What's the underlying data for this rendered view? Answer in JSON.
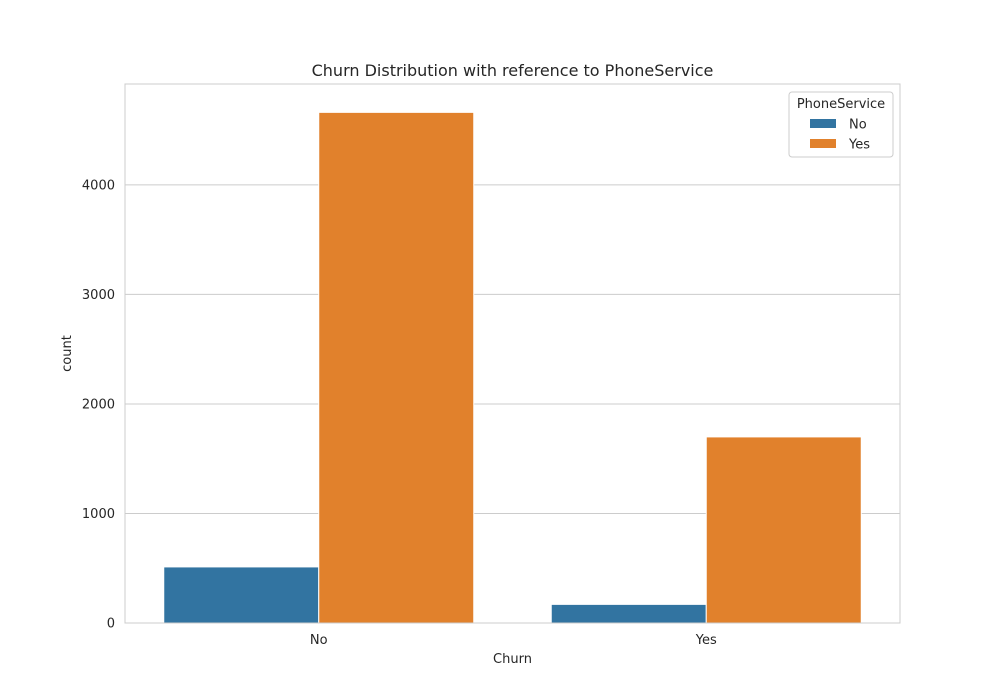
{
  "chart_data": {
    "type": "bar",
    "title": "Churn Distribution with reference to PhoneService",
    "xlabel": "Churn",
    "ylabel": "count",
    "categories": [
      "No",
      "Yes"
    ],
    "series": [
      {
        "name": "No",
        "values": [
          512,
          170
        ],
        "color": "#3274a1"
      },
      {
        "name": "Yes",
        "values": [
          4662,
          1699
        ],
        "color": "#e1812c"
      }
    ],
    "ylim": [
      0,
      4921
    ],
    "yticks": [
      0,
      1000,
      2000,
      3000,
      4000
    ],
    "grid": true,
    "legend": {
      "title": "PhoneService",
      "placement": "top-right"
    }
  }
}
